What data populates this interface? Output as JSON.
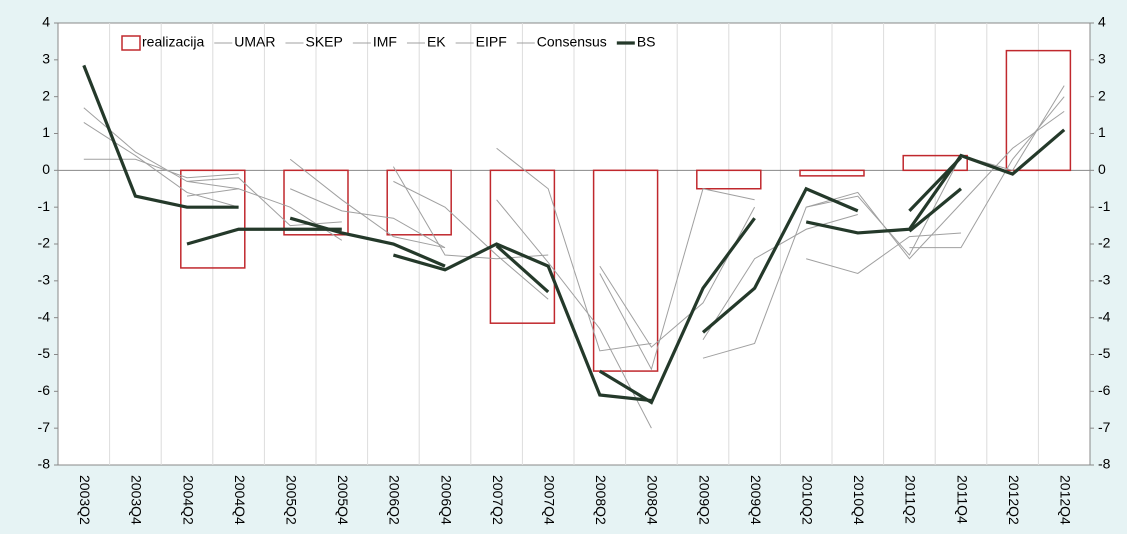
{
  "chart_data": {
    "type": "combo",
    "categories": [
      "2003Q2",
      "2003Q4",
      "2004Q2",
      "2004Q4",
      "2005Q2",
      "2005Q4",
      "2006Q2",
      "2006Q4",
      "2007Q2",
      "2007Q4",
      "2008Q2",
      "2008Q4",
      "2009Q2",
      "2009Q4",
      "2010Q2",
      "2010Q4",
      "2011Q2",
      "2011Q4",
      "2012Q2",
      "2012Q4"
    ],
    "ylim": [
      -8,
      4
    ],
    "yticks": [
      -8,
      -7,
      -6,
      -5,
      -4,
      -3,
      -2,
      -1,
      0,
      1,
      2,
      3,
      4
    ],
    "grid": true,
    "legend": "top-left",
    "series": [
      {
        "name": "realizacija",
        "type": "bar",
        "color": "#c0282d",
        "values": [
          null,
          null,
          -2.65,
          null,
          -1.75,
          null,
          -1.75,
          null,
          -4.15,
          null,
          -5.45,
          null,
          -0.5,
          null,
          -0.15,
          null,
          0.4,
          null,
          3.25,
          null
        ]
      },
      {
        "name": "UMAR",
        "type": "line",
        "color": "#a0a0a0",
        "width": 1,
        "segments": [
          [
            1.7,
            0.5,
            -0.3,
            -0.5,
            null,
            null,
            null,
            null,
            null,
            null,
            null,
            null,
            null,
            null,
            null,
            null,
            null,
            null,
            null,
            null
          ],
          [
            null,
            null,
            null,
            null,
            null,
            null,
            -0.3,
            -1.0,
            -2.3,
            -3.5,
            null,
            null,
            null,
            null,
            null,
            null,
            null,
            null,
            null,
            null
          ],
          [
            null,
            null,
            null,
            null,
            null,
            null,
            null,
            null,
            null,
            null,
            null,
            null,
            -4.6,
            -2.4,
            -1.6,
            -1.2,
            null,
            null,
            null,
            null
          ]
        ]
      },
      {
        "name": "SKEP",
        "type": "line",
        "color": "#a0a0a0",
        "width": 1,
        "segments": [
          [
            1.3,
            0.4,
            -0.6,
            -1.0,
            null,
            null,
            null,
            null,
            null,
            null,
            null,
            null,
            null,
            null,
            null,
            null,
            null,
            null,
            null,
            null
          ],
          [
            null,
            null,
            null,
            null,
            null,
            null,
            null,
            null,
            0.6,
            -0.5,
            -4.9,
            -4.7,
            null,
            null,
            null,
            null,
            null,
            null,
            null,
            null
          ],
          [
            null,
            null,
            null,
            null,
            null,
            null,
            null,
            null,
            null,
            null,
            null,
            null,
            null,
            null,
            -1.0,
            -0.7,
            -2.3,
            0.4,
            0.0,
            2.3
          ]
        ]
      },
      {
        "name": "IMF",
        "type": "line",
        "color": "#a0a0a0",
        "width": 1,
        "segments": [
          [
            0.3,
            0.3,
            -0.2,
            -0.1,
            null,
            null,
            null,
            null,
            null,
            null,
            null,
            null,
            null,
            null,
            null,
            null,
            null,
            null,
            null,
            null
          ],
          [
            null,
            null,
            null,
            null,
            0.3,
            -0.8,
            -1.8,
            -2.1,
            null,
            null,
            null,
            null,
            null,
            null,
            null,
            null,
            null,
            null,
            null,
            null
          ],
          [
            null,
            null,
            null,
            null,
            null,
            null,
            null,
            null,
            null,
            null,
            -2.6,
            -4.8,
            -3.6,
            -1.0,
            null,
            null,
            null,
            null,
            null,
            null
          ]
        ]
      },
      {
        "name": "EK",
        "type": "line",
        "color": "#a0a0a0",
        "width": 1,
        "segments": [
          [
            null,
            null,
            -0.7,
            -0.5,
            -1.0,
            -1.9,
            null,
            null,
            null,
            null,
            null,
            null,
            null,
            null,
            null,
            null,
            null,
            null,
            null,
            null
          ],
          [
            null,
            null,
            null,
            null,
            null,
            null,
            null,
            null,
            -0.8,
            -2.5,
            -4.3,
            -7.0,
            null,
            null,
            null,
            null,
            null,
            null,
            null,
            null
          ],
          [
            null,
            null,
            null,
            null,
            null,
            null,
            null,
            null,
            null,
            null,
            null,
            null,
            null,
            null,
            null,
            null,
            -2.1,
            -2.1,
            0.3,
            2.0
          ]
        ]
      },
      {
        "name": "EIPF",
        "type": "line",
        "color": "#a0a0a0",
        "width": 1,
        "segments": [
          [
            null,
            null,
            null,
            null,
            -0.5,
            -1.1,
            -1.3,
            -2.1,
            null,
            null,
            null,
            null,
            null,
            null,
            null,
            null,
            null,
            null,
            null,
            null
          ],
          [
            null,
            null,
            null,
            null,
            null,
            null,
            null,
            null,
            null,
            null,
            -2.8,
            -5.4,
            -0.5,
            -0.8,
            null,
            null,
            null,
            null,
            null,
            null
          ],
          [
            null,
            null,
            null,
            null,
            null,
            null,
            null,
            null,
            null,
            null,
            null,
            null,
            null,
            null,
            -2.4,
            -2.8,
            -1.8,
            -1.7,
            null,
            null
          ]
        ]
      },
      {
        "name": "Consensus",
        "type": "line",
        "color": "#a0a0a0",
        "width": 1,
        "segments": [
          [
            null,
            null,
            -0.3,
            -0.2,
            -1.5,
            -1.4,
            null,
            null,
            null,
            null,
            null,
            null,
            null,
            null,
            null,
            null,
            null,
            null,
            null,
            null
          ],
          [
            null,
            null,
            null,
            null,
            null,
            null,
            0.1,
            -2.3,
            -2.4,
            -2.3,
            null,
            null,
            null,
            null,
            null,
            null,
            null,
            null,
            null,
            null
          ],
          [
            null,
            null,
            null,
            null,
            null,
            null,
            null,
            null,
            null,
            null,
            null,
            null,
            -5.1,
            -4.7,
            -1.0,
            -0.6,
            -2.4,
            -0.9,
            0.6,
            1.6
          ]
        ]
      },
      {
        "name": "BS",
        "type": "line",
        "color": "#24392a",
        "width": 3.2,
        "segments": [
          [
            2.85,
            -0.7,
            -1.0,
            -1.0,
            null,
            null,
            null,
            null,
            null,
            null,
            null,
            null,
            null,
            null,
            null,
            null,
            null,
            null,
            null,
            null
          ],
          [
            null,
            null,
            -2.0,
            -1.6,
            -1.6,
            -1.6,
            null,
            null,
            null,
            null,
            null,
            null,
            null,
            null,
            null,
            null,
            null,
            null,
            null,
            null
          ],
          [
            null,
            null,
            null,
            null,
            -1.3,
            -1.7,
            -2.0,
            -2.6,
            null,
            null,
            null,
            null,
            null,
            null,
            null,
            null,
            null,
            null,
            null,
            null
          ],
          [
            null,
            null,
            null,
            null,
            null,
            null,
            -2.3,
            -2.7,
            -2.0,
            -2.6,
            -6.1,
            -6.25,
            null,
            null,
            null,
            null,
            null,
            null,
            null,
            null
          ],
          [
            null,
            null,
            null,
            null,
            null,
            null,
            null,
            null,
            -2.05,
            -3.3,
            null,
            null,
            null,
            null,
            null,
            null,
            null,
            null,
            null,
            null
          ],
          [
            null,
            null,
            null,
            null,
            null,
            null,
            null,
            null,
            null,
            null,
            -5.45,
            -6.3,
            -3.2,
            -1.3,
            null,
            null,
            null,
            null,
            null,
            null
          ],
          [
            null,
            null,
            null,
            null,
            null,
            null,
            null,
            null,
            null,
            null,
            null,
            null,
            -4.4,
            -3.2,
            -0.5,
            -1.1,
            null,
            null,
            null,
            null
          ],
          [
            null,
            null,
            null,
            null,
            null,
            null,
            null,
            null,
            null,
            null,
            null,
            null,
            null,
            null,
            -1.4,
            -1.7,
            -1.6,
            0.4,
            -0.1,
            1.1
          ],
          [
            null,
            null,
            null,
            null,
            null,
            null,
            null,
            null,
            null,
            null,
            null,
            null,
            null,
            null,
            null,
            null,
            -1.1,
            0.35,
            null,
            null
          ],
          [
            null,
            null,
            null,
            null,
            null,
            null,
            null,
            null,
            null,
            null,
            null,
            null,
            null,
            null,
            null,
            null,
            -1.65,
            -0.5,
            null,
            null
          ]
        ]
      }
    ]
  }
}
